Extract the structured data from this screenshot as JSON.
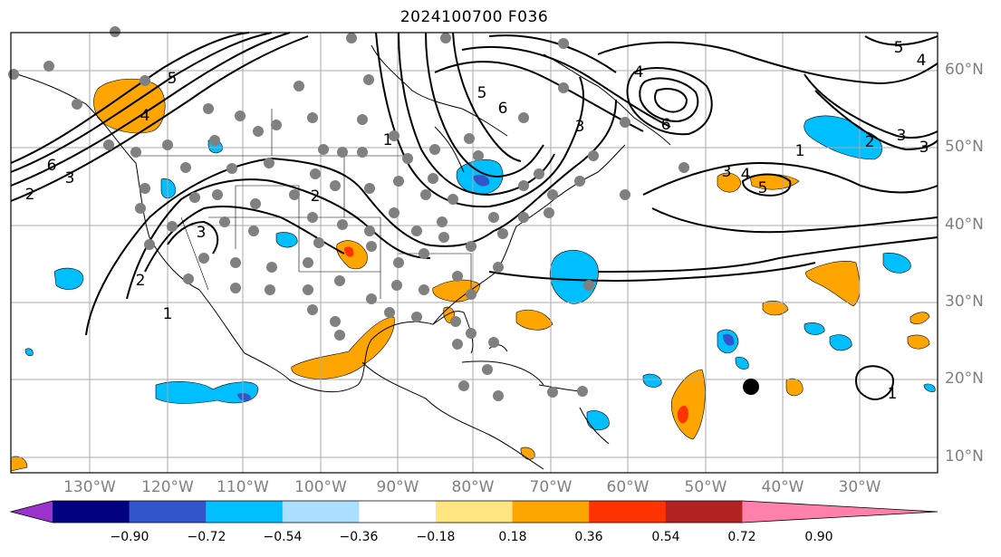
{
  "title": "2024100700 F036",
  "map": {
    "longitude_labels": [
      "130°W",
      "120°W",
      "110°W",
      "100°W",
      "90°W",
      "80°W",
      "70°W",
      "60°W",
      "50°W",
      "40°W",
      "30°W"
    ],
    "latitude_labels": [
      "60°N",
      "50°N",
      "40°N",
      "30°N",
      "20°N",
      "10°N"
    ],
    "contour_labels": [
      "1",
      "2",
      "3",
      "4",
      "5",
      "6"
    ],
    "contour_color": "#000000",
    "gridline_color": "#aaaaaa",
    "station_marker_color": "#808080",
    "storm_marker_color": "#000000"
  },
  "colorbar": {
    "ticks": [
      "−0.90",
      "−0.72",
      "−0.54",
      "−0.36",
      "−0.18",
      "0.18",
      "0.36",
      "0.54",
      "0.72",
      "0.90"
    ],
    "colors": [
      "#9933cc",
      "#000080",
      "#3355cc",
      "#00bfff",
      "#aadfff",
      "#ffffff",
      "#ffe680",
      "#ffa500",
      "#ff3300",
      "#b22222",
      "#ff80aa"
    ]
  }
}
